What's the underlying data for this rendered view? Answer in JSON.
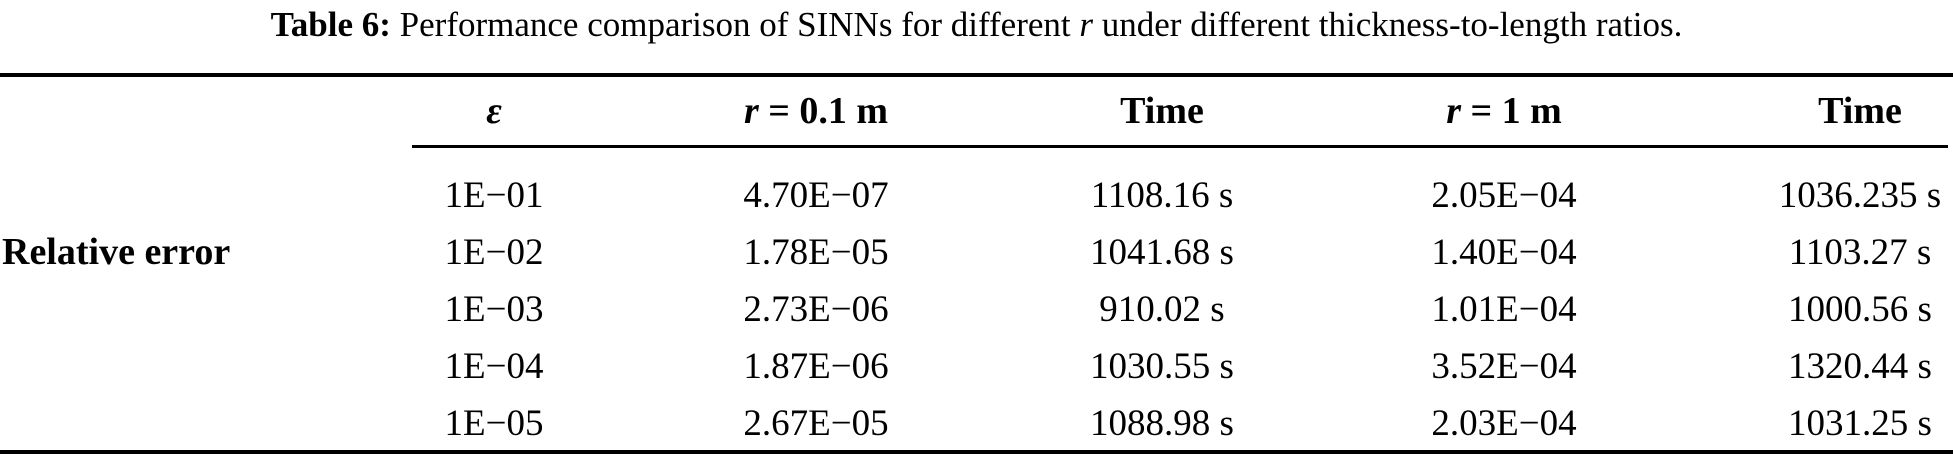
{
  "caption": {
    "label": "Table 6:",
    "text_before": "Performance comparison of SINNs for different",
    "italic_var": "r",
    "text_after": "under different thickness-to-length ratios."
  },
  "table": {
    "row_label": "Relative error",
    "headers": {
      "epsilon": "ε",
      "r_small_var": "r",
      "r_small_rest": "= 0.1 m",
      "time1": "Time",
      "r_large_var": "r",
      "r_large_rest": "= 1 m",
      "time2": "Time"
    },
    "rows": [
      [
        "1E−01",
        "4.70E−07",
        "1108.16 s",
        "2.05E−04",
        "1036.235 s"
      ],
      [
        "1E−02",
        "1.78E−05",
        "1041.68 s",
        "1.40E−04",
        "1103.27 s"
      ],
      [
        "1E−03",
        "2.73E−06",
        "910.02 s",
        "1.01E−04",
        "1000.56 s"
      ],
      [
        "1E−04",
        "1.87E−06",
        "1030.55 s",
        "3.52E−04",
        "1320.44 s"
      ],
      [
        "1E−05",
        "2.67E−05",
        "1088.98 s",
        "2.03E−04",
        "1031.25 s"
      ]
    ]
  },
  "colors": {
    "background": "#ffffff",
    "text": "#000000",
    "rule": "#000000"
  }
}
